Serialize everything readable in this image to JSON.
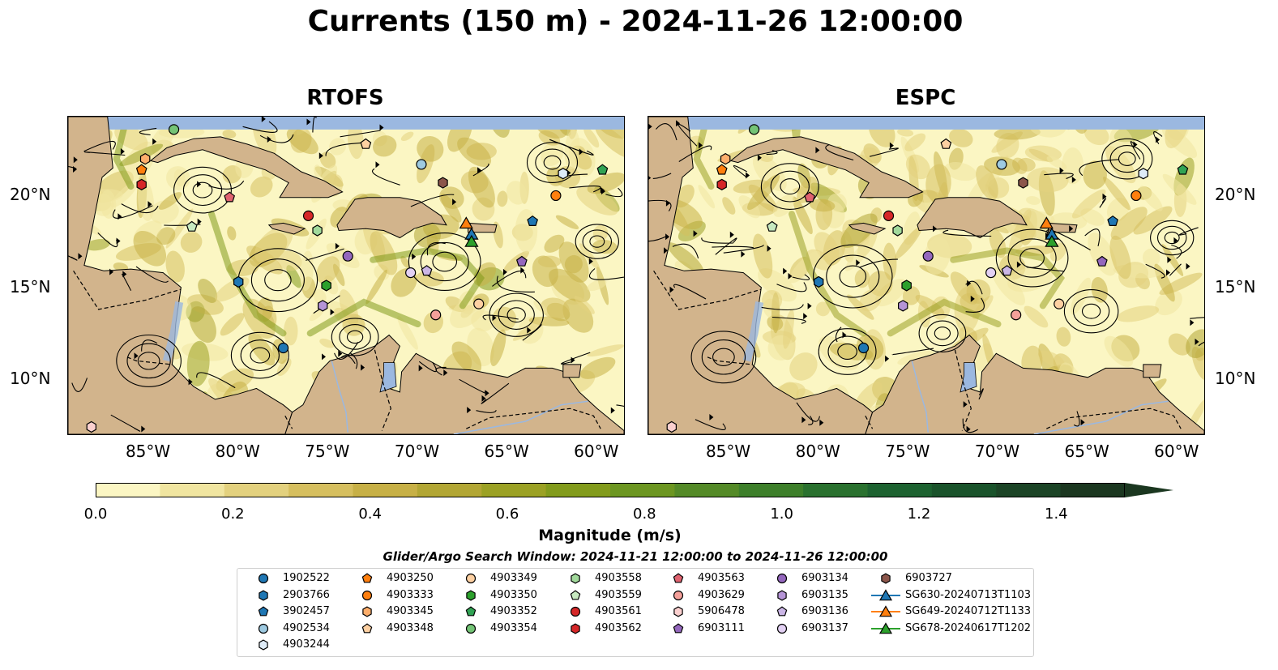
{
  "title": "Currents (150 m) - 2024-11-26 12:00:00",
  "panels": [
    {
      "title": "RTOFS",
      "scale": 1.0
    },
    {
      "title": "ESPC",
      "scale": 0.85
    }
  ],
  "axes": {
    "lat_labels": [
      "20°N",
      "15°N",
      "10°N"
    ],
    "lon_labels": [
      "85°W",
      "80°W",
      "75°W",
      "70°W",
      "65°W",
      "60°W"
    ],
    "lat_values": [
      20,
      15,
      10
    ],
    "lon_values": [
      -85,
      -80,
      -75,
      -70,
      -65,
      -60
    ],
    "extent": {
      "lon_min": -89.5,
      "lon_max": -58.5,
      "lat_min": 7.0,
      "lat_max": 24.3
    }
  },
  "colorbar": {
    "label": "Magnitude (m/s)",
    "ticks": [
      "0.0",
      "0.2",
      "0.4",
      "0.6",
      "0.8",
      "1.0",
      "1.2",
      "1.4"
    ],
    "tick_values": [
      0.0,
      0.2,
      0.4,
      0.6,
      0.8,
      1.0,
      1.2,
      1.4
    ],
    "min": 0.0,
    "max": 1.5,
    "colors": [
      "#fbf6c3",
      "#f0e5a0",
      "#e3d17e",
      "#d6bf5f",
      "#c7b046",
      "#b2a634",
      "#9ba124",
      "#829b1c",
      "#6c9621",
      "#548a27",
      "#3d7f2a",
      "#2a712f",
      "#1d6230",
      "#1a532b",
      "#1c4426",
      "#1b3720"
    ]
  },
  "subtitle": "Glider/Argo Search Window: 2024-11-21 12:00:00 to 2024-11-26 12:00:00",
  "colors": {
    "land": "#d2b48c",
    "ocean_lake": "#9bb8e0",
    "streamline": "#000000"
  },
  "floats": [
    {
      "id": "1902522",
      "marker": "circle",
      "color": "#1f77b4",
      "lon": -77.5,
      "lat": 11.7
    },
    {
      "id": "2903766",
      "marker": "hexagon",
      "color": "#1f77b4",
      "lon": -80.0,
      "lat": 15.3
    },
    {
      "id": "3902457",
      "marker": "pentagon",
      "color": "#1f77b4",
      "lon": -63.6,
      "lat": 18.6
    },
    {
      "id": "4902534",
      "marker": "circle",
      "color": "#9ecae1",
      "lon": -69.8,
      "lat": 21.7
    },
    {
      "id": "4903244",
      "marker": "hexagon",
      "color": "#deebf7",
      "lon": -61.9,
      "lat": 21.2
    },
    {
      "id": "4903250",
      "marker": "pentagon",
      "color": "#ff7f0e",
      "lon": -85.4,
      "lat": 21.4
    },
    {
      "id": "4903333",
      "marker": "circle",
      "color": "#ff7f0e",
      "lon": -62.3,
      "lat": 20.0
    },
    {
      "id": "4903345",
      "marker": "hexagon",
      "color": "#fdae6b",
      "lon": -85.2,
      "lat": 22.0
    },
    {
      "id": "4903348",
      "marker": "pentagon",
      "color": "#fdd0a2",
      "lon": -72.9,
      "lat": 22.8
    },
    {
      "id": "4903349",
      "marker": "circle",
      "color": "#fdd0a2",
      "lon": -66.6,
      "lat": 14.1
    },
    {
      "id": "4903350",
      "marker": "hexagon",
      "color": "#2ca02c",
      "lon": -75.1,
      "lat": 15.1
    },
    {
      "id": "4903352",
      "marker": "pentagon",
      "color": "#31a354",
      "lon": -59.7,
      "lat": 21.4
    },
    {
      "id": "4903354",
      "marker": "circle",
      "color": "#74c476",
      "lon": -83.6,
      "lat": 23.6
    },
    {
      "id": "4903558",
      "marker": "hexagon",
      "color": "#a1d99b",
      "lon": -75.6,
      "lat": 18.1
    },
    {
      "id": "4903559",
      "marker": "pentagon",
      "color": "#c7e9c0",
      "lon": -82.6,
      "lat": 18.3
    },
    {
      "id": "4903561",
      "marker": "circle",
      "color": "#d62728",
      "lon": -76.1,
      "lat": 18.9
    },
    {
      "id": "4903562",
      "marker": "hexagon",
      "color": "#d62728",
      "lon": -85.4,
      "lat": 20.6
    },
    {
      "id": "4903563",
      "marker": "pentagon",
      "color": "#e06370",
      "lon": -80.5,
      "lat": 19.9
    },
    {
      "id": "4903629",
      "marker": "circle",
      "color": "#f4a09a",
      "lon": -69.0,
      "lat": 13.5
    },
    {
      "id": "5906478",
      "marker": "hexagon",
      "color": "#fbd0cf",
      "lon": -88.2,
      "lat": 7.4
    },
    {
      "id": "6903111",
      "marker": "pentagon",
      "color": "#9467bd",
      "lon": -64.2,
      "lat": 16.4
    },
    {
      "id": "6903134",
      "marker": "circle",
      "color": "#9467bd",
      "lon": -73.9,
      "lat": 16.7
    },
    {
      "id": "6903135",
      "marker": "hexagon",
      "color": "#b594d6",
      "lon": -75.3,
      "lat": 14.0
    },
    {
      "id": "6903136",
      "marker": "pentagon",
      "color": "#cbb6e6",
      "lon": -69.5,
      "lat": 15.9
    },
    {
      "id": "6903137",
      "marker": "circle",
      "color": "#e2d0f3",
      "lon": -70.4,
      "lat": 15.8
    },
    {
      "id": "6903727",
      "marker": "hexagon",
      "color": "#8c564b",
      "lon": -68.6,
      "lat": 20.7
    }
  ],
  "gliders": [
    {
      "id": "SG630-20240713T1103",
      "marker": "triangle",
      "color": "#1f77b4",
      "lon": -67.0,
      "lat": 17.9
    },
    {
      "id": "SG649-20240712T1133",
      "marker": "triangle",
      "color": "#ff7f0e",
      "lon": -67.3,
      "lat": 18.5
    },
    {
      "id": "SG678-20240617T1202",
      "marker": "triangle",
      "color": "#2ca02c",
      "lon": -67.0,
      "lat": 17.5
    }
  ]
}
